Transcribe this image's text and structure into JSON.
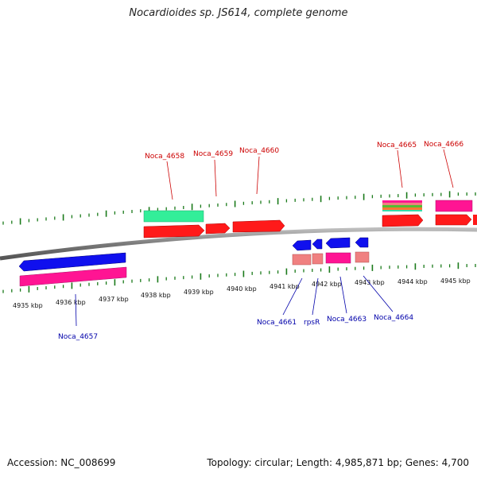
{
  "title": "Nocardioides sp. JS614, complete genome",
  "accession": "Accession: NC_008699",
  "topology": "Topology: circular; Length: 4,985,871 bp; Genes: 4,700",
  "colors": {
    "backbone": "#808080",
    "tick": "#1a7a1a",
    "forward_label": "#cc0000",
    "reverse_label": "#0000aa",
    "cds_forward": "#ff0000",
    "cds_reverse": "#0000ee",
    "feature_pink": "#ff1493",
    "feature_salmon": "#f08080",
    "feature_green": "#33ee99"
  },
  "ticks": [
    {
      "label": "4935 kbp"
    },
    {
      "label": "4936 kbp"
    },
    {
      "label": "4937 kbp"
    },
    {
      "label": "4938 kbp"
    },
    {
      "label": "4939 kbp"
    },
    {
      "label": "4940 kbp"
    },
    {
      "label": "4941 kbp"
    },
    {
      "label": "4942 kbp"
    },
    {
      "label": "4943 kbp"
    },
    {
      "label": "4944 kbp"
    },
    {
      "label": "4945 kbp"
    }
  ],
  "gene_labels": {
    "forward": [
      "Noca_4658",
      "Noca_4659",
      "Noca_4660",
      "Noca_4665",
      "Noca_4666"
    ],
    "reverse": [
      "Noca_4657",
      "Noca_4661",
      "rpsR",
      "Noca_4663",
      "Noca_4664"
    ]
  }
}
